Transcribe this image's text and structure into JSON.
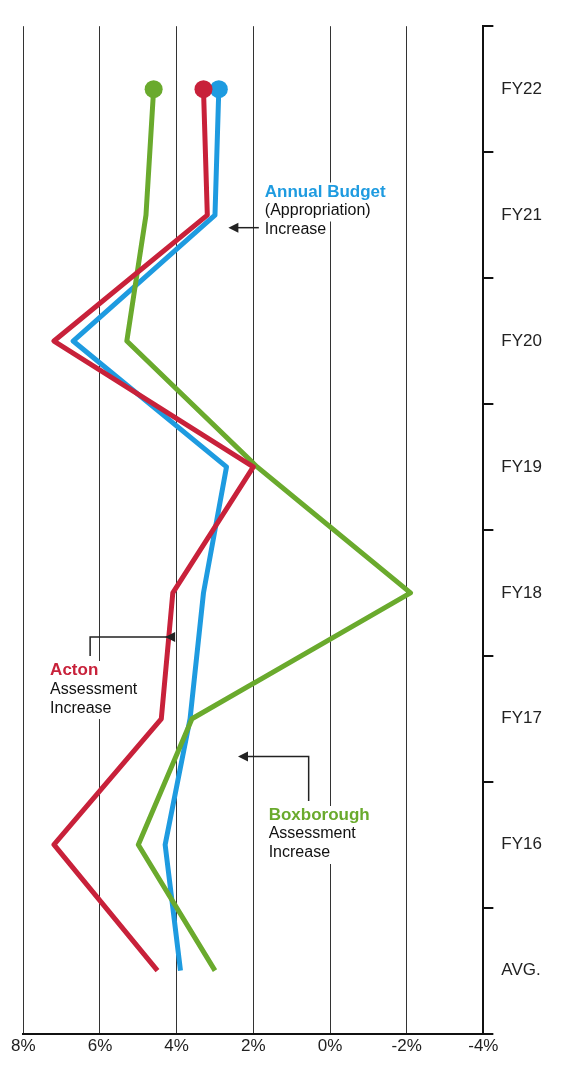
{
  "chart_data": {
    "type": "line",
    "orientation": "horizontal",
    "categories": [
      "FY22",
      "FY21",
      "FY20",
      "FY19",
      "FY18",
      "FY17",
      "FY16",
      "AVG."
    ],
    "series": [
      {
        "name": "Acton Assessment Increase",
        "color": "#c8213a",
        "values": [
          3.3,
          3.2,
          7.2,
          2.0,
          4.1,
          4.4,
          7.2,
          4.5
        ]
      },
      {
        "name": "Boxborough Assessment Increase",
        "color": "#6aaa2d",
        "values": [
          4.6,
          4.8,
          5.3,
          1.9,
          -2.1,
          3.6,
          5.0,
          3.0
        ]
      },
      {
        "name": "Annual Budget (Appropriation) Increase",
        "color": "#1e9be0",
        "values": [
          2.9,
          3.0,
          6.7,
          2.7,
          3.3,
          3.65,
          4.3,
          3.9
        ]
      }
    ],
    "xlim": [
      8,
      -4
    ],
    "xticks": [
      {
        "value": 8,
        "label": "8%"
      },
      {
        "value": 6,
        "label": "6%"
      },
      {
        "value": 4,
        "label": "4%"
      },
      {
        "value": 2,
        "label": "2%"
      },
      {
        "value": 0,
        "label": "0%"
      },
      {
        "value": -2,
        "label": "-2%"
      },
      {
        "value": -4,
        "label": "-4%"
      }
    ],
    "grid": "x",
    "legend": false
  }
}
